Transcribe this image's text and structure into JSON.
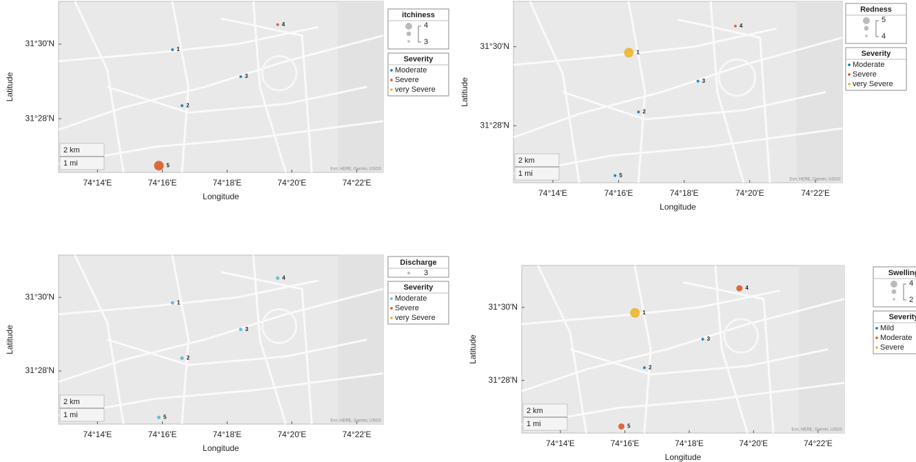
{
  "chart_data": [
    {
      "type": "geobubble",
      "size_title": "itchiness",
      "size_legend": [
        4,
        3
      ],
      "color_title": "Severity",
      "xlabel": "Longitude",
      "ylabel": "Latitude",
      "xlim": [
        74.2133,
        74.3803
      ],
      "ylim": [
        31.4427,
        31.5191
      ],
      "xticks": [
        {
          "value": 74.2333,
          "label": "74°14'E"
        },
        {
          "value": 74.2667,
          "label": "74°16'E"
        },
        {
          "value": 74.3,
          "label": "74°18'E"
        },
        {
          "value": 74.3333,
          "label": "74°20'E"
        },
        {
          "value": 74.3667,
          "label": "74°22'E"
        }
      ],
      "yticks": [
        {
          "value": 31.4667,
          "label": "31°28'N"
        },
        {
          "value": 31.5,
          "label": "31°30'N"
        }
      ],
      "scale_labels": [
        "2 km",
        "1 mi"
      ],
      "attribution": "Esri, HERE, Garmin, USGS",
      "series": [
        {
          "name": "Moderate",
          "color": "#0072bd",
          "lon": [
            74.2719,
            74.2768,
            74.307
          ],
          "lat": [
            31.4975,
            31.4725,
            31.4855
          ],
          "sizes": [
            3,
            3,
            3
          ],
          "labels": [
            "1",
            "2",
            "3"
          ]
        },
        {
          "name": "Severe",
          "color": "#d95319",
          "lon": [
            74.326,
            74.2649
          ],
          "lat": [
            31.5087,
            31.4457
          ],
          "sizes": [
            3,
            4
          ],
          "labels": [
            "4",
            "5"
          ]
        },
        {
          "name": "very Severe",
          "color": "#edb120",
          "lon": [],
          "lat": [],
          "sizes": [],
          "labels": []
        }
      ]
    },
    {
      "type": "geobubble",
      "size_title": "Redness",
      "size_legend": [
        5,
        4
      ],
      "color_title": "Severity",
      "xlabel": "Longitude",
      "ylabel": "Latitude",
      "xlim": [
        74.2133,
        74.3803
      ],
      "ylim": [
        31.4427,
        31.5191
      ],
      "xticks": [
        {
          "value": 74.2333,
          "label": "74°14'E"
        },
        {
          "value": 74.2667,
          "label": "74°16'E"
        },
        {
          "value": 74.3,
          "label": "74°18'E"
        },
        {
          "value": 74.3333,
          "label": "74°20'E"
        },
        {
          "value": 74.3667,
          "label": "74°22'E"
        }
      ],
      "yticks": [
        {
          "value": 31.4667,
          "label": "31°28'N"
        },
        {
          "value": 31.5,
          "label": "31°30'N"
        }
      ],
      "scale_labels": [
        "2 km",
        "1 mi"
      ],
      "attribution": "Esri, HERE, Garmin, USGS",
      "series": [
        {
          "name": "Moderate",
          "color": "#0072bd",
          "lon": [
            74.2768,
            74.307,
            74.2649
          ],
          "lat": [
            31.4725,
            31.4855,
            31.4457
          ],
          "sizes": [
            4,
            4,
            4
          ],
          "labels": [
            "2",
            "3",
            "5"
          ]
        },
        {
          "name": "Severe",
          "color": "#d95319",
          "lon": [
            74.326
          ],
          "lat": [
            31.5087
          ],
          "sizes": [
            4
          ],
          "labels": [
            "4"
          ]
        },
        {
          "name": "very Severe",
          "color": "#edb120",
          "lon": [
            74.2719
          ],
          "lat": [
            31.4975
          ],
          "sizes": [
            5
          ],
          "labels": [
            "1"
          ]
        }
      ]
    },
    {
      "type": "geobubble",
      "size_title": "Discharge",
      "size_legend": [
        3
      ],
      "color_title": "Severity",
      "xlabel": "Longitude",
      "ylabel": "Latitude",
      "xlim": [
        74.2133,
        74.3803
      ],
      "ylim": [
        31.4427,
        31.5191
      ],
      "xticks": [
        {
          "value": 74.2333,
          "label": "74°14'E"
        },
        {
          "value": 74.2667,
          "label": "74°16'E"
        },
        {
          "value": 74.3,
          "label": "74°18'E"
        },
        {
          "value": 74.3333,
          "label": "74°20'E"
        },
        {
          "value": 74.3667,
          "label": "74°22'E"
        }
      ],
      "yticks": [
        {
          "value": 31.4667,
          "label": "31°28'N"
        },
        {
          "value": 31.5,
          "label": "31°30'N"
        }
      ],
      "scale_labels": [
        "2 km",
        "1 mi"
      ],
      "attribution": "Esri, HERE, Garmin, USGS",
      "series": [
        {
          "name": "Moderate",
          "color": "#4db3e6",
          "lon": [
            74.2719,
            74.2768,
            74.307,
            74.326,
            74.2649
          ],
          "lat": [
            31.4975,
            31.4725,
            31.4855,
            31.5087,
            31.4457
          ],
          "sizes": [
            3,
            3,
            3,
            3,
            3
          ],
          "labels": [
            "1",
            "2",
            "3",
            "4",
            "5"
          ]
        },
        {
          "name": "Severe",
          "color": "#d95319",
          "lon": [],
          "lat": [],
          "sizes": [],
          "labels": []
        },
        {
          "name": "very Severe",
          "color": "#edb120",
          "lon": [],
          "lat": [],
          "sizes": [],
          "labels": []
        }
      ]
    },
    {
      "type": "geobubble",
      "size_title": "Swelling",
      "size_legend": [
        4,
        2
      ],
      "color_title": "Severity",
      "xlabel": "Longitude",
      "ylabel": "Latitude",
      "xlim": [
        74.2133,
        74.3803
      ],
      "ylim": [
        31.4427,
        31.5191
      ],
      "xticks": [
        {
          "value": 74.2333,
          "label": "74°14'E"
        },
        {
          "value": 74.2667,
          "label": "74°16'E"
        },
        {
          "value": 74.3,
          "label": "74°18'E"
        },
        {
          "value": 74.3333,
          "label": "74°20'E"
        },
        {
          "value": 74.3667,
          "label": "74°22'E"
        }
      ],
      "yticks": [
        {
          "value": 31.4667,
          "label": "31°28'N"
        },
        {
          "value": 31.5,
          "label": "31°30'N"
        }
      ],
      "scale_labels": [
        "2 km",
        "1 mi"
      ],
      "attribution": "Esri, HERE, Garmin, USGS",
      "series": [
        {
          "name": "Mild",
          "color": "#0072bd",
          "lon": [
            74.2768,
            74.307
          ],
          "lat": [
            31.4725,
            31.4855
          ],
          "sizes": [
            2,
            2
          ],
          "labels": [
            "2",
            "3"
          ]
        },
        {
          "name": "Moderate",
          "color": "#d95319",
          "lon": [
            74.326,
            74.2649
          ],
          "lat": [
            31.5087,
            31.4457
          ],
          "sizes": [
            3,
            3
          ],
          "labels": [
            "4",
            "5"
          ]
        },
        {
          "name": "Severe",
          "color": "#edb120",
          "lon": [
            74.2719
          ],
          "lat": [
            31.4975
          ],
          "sizes": [
            4
          ],
          "labels": [
            "1"
          ]
        }
      ]
    }
  ]
}
